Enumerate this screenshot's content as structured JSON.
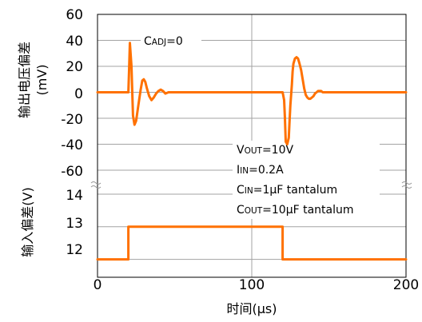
{
  "chart_data": [
    {
      "type": "line",
      "ylabel_line1": "输出电压偏差",
      "ylabel_line2": "(mV)",
      "y_ticks": [
        "60",
        "40",
        "20",
        "0",
        "-20",
        "-40",
        "-60"
      ],
      "ylim": [
        -60,
        60
      ],
      "xlim": [
        0,
        200
      ],
      "grid": true,
      "series_color": "#ff7100",
      "series": [
        {
          "x": [
            0,
            20,
            20.5,
            21,
            22,
            23,
            24,
            25,
            26.5,
            28,
            29,
            30,
            31,
            32,
            33.5,
            35,
            36.5,
            38,
            39.5,
            41,
            42.5,
            44,
            46,
            48,
            50,
            120,
            121,
            121.5,
            122,
            123,
            124,
            124.5,
            125,
            126,
            126.5,
            127,
            128,
            129,
            130,
            131,
            132,
            133,
            134,
            135,
            136,
            137,
            138,
            139,
            140,
            141,
            142,
            143,
            144,
            145,
            146,
            148,
            200
          ],
          "y": [
            0,
            0,
            19,
            38,
            20,
            -18,
            -25,
            -22,
            -10,
            2,
            9,
            10,
            8,
            3,
            -3,
            -6,
            -4,
            -1,
            1,
            2,
            1,
            -1,
            0,
            0,
            0,
            0,
            -6,
            -20,
            -38,
            -40,
            -35,
            -22,
            -10,
            6,
            16,
            22,
            26,
            27,
            26,
            22,
            17,
            10,
            3,
            -2,
            -4,
            -5,
            -5,
            -4,
            -3,
            -1,
            0,
            1,
            1,
            1,
            0,
            0,
            0
          ]
        }
      ]
    },
    {
      "type": "line",
      "ylabel": "输入偏差(V)",
      "y_ticks": [
        "14",
        "13",
        "12"
      ],
      "ylim": [
        11.5,
        14
      ],
      "xlim": [
        0,
        200
      ],
      "x_ticks": [
        "0",
        "100",
        "200"
      ],
      "xlabel": "时间(μs)",
      "grid": true,
      "series_color": "#ff7100",
      "series": [
        {
          "x": [
            0,
            20,
            20,
            120,
            120,
            200
          ],
          "y": [
            12,
            12,
            13,
            13,
            12,
            12
          ]
        }
      ]
    }
  ],
  "annotations": {
    "cadj": {
      "lead": "C",
      "sub": "ADJ",
      "rest": "=0"
    },
    "vout": {
      "lead": "V",
      "sub": "OUT",
      "rest": "=10V"
    },
    "iin": {
      "lead": "I",
      "sub": "IN",
      "rest": "=0.2A"
    },
    "cin": {
      "lead": "C",
      "sub": "IN",
      "rest": "=1μF tantalum"
    },
    "cout": {
      "lead": "C",
      "sub": "OUT",
      "rest": "=10μF tantalum"
    }
  }
}
